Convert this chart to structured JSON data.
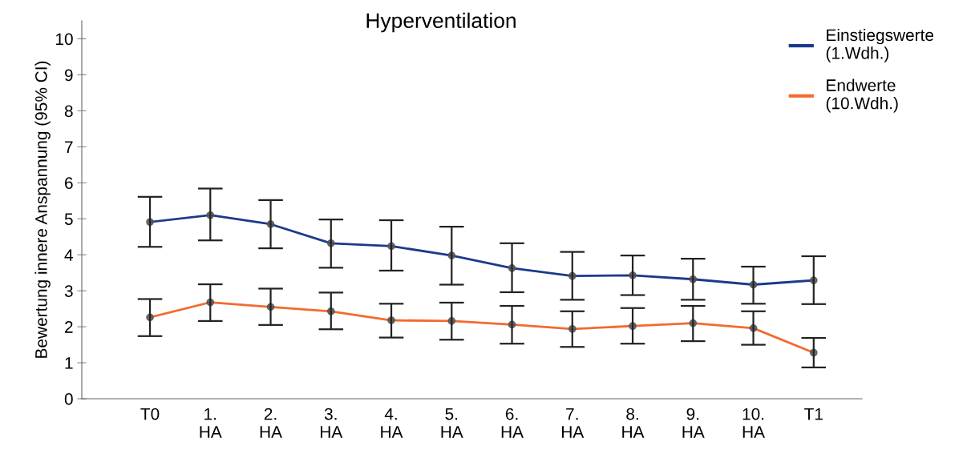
{
  "chart_data": {
    "type": "line",
    "title": "Hyperventilation",
    "ylabel": "Bewertung innere Anspannung (95% CI)",
    "categories": [
      "T0",
      "1.\nHA",
      "2.\nHA",
      "3.\nHA",
      "4.\nHA",
      "5.\nHA",
      "6.\nHA",
      "7.\nHA",
      "8.\nHA",
      "9.\nHA",
      "10.\nHA",
      "T1"
    ],
    "series": [
      {
        "name": "Einstiegswerte\n(1.Wdh.)",
        "color": "#1b3a8c",
        "values": [
          4.91,
          5.1,
          4.85,
          4.32,
          4.24,
          3.98,
          3.63,
          3.41,
          3.43,
          3.32,
          3.17,
          3.29
        ],
        "errors": [
          [
            4.22,
            5.61
          ],
          [
            4.4,
            5.84
          ],
          [
            4.18,
            5.52
          ],
          [
            3.64,
            4.98
          ],
          [
            3.56,
            4.96
          ],
          [
            3.17,
            4.78
          ],
          [
            2.96,
            4.32
          ],
          [
            2.75,
            4.08
          ],
          [
            2.88,
            3.98
          ],
          [
            2.75,
            3.89
          ],
          [
            2.64,
            3.67
          ],
          [
            2.63,
            3.96
          ]
        ]
      },
      {
        "name": "Endwerte\n(10.Wdh.)",
        "color": "#f26b2f",
        "values": [
          2.26,
          2.68,
          2.55,
          2.43,
          2.18,
          2.16,
          2.06,
          1.94,
          2.02,
          2.1,
          1.96,
          1.28
        ],
        "errors": [
          [
            1.74,
            2.77
          ],
          [
            2.16,
            3.18
          ],
          [
            2.05,
            3.06
          ],
          [
            1.93,
            2.95
          ],
          [
            1.7,
            2.64
          ],
          [
            1.64,
            2.67
          ],
          [
            1.53,
            2.58
          ],
          [
            1.44,
            2.43
          ],
          [
            1.53,
            2.52
          ],
          [
            1.6,
            2.58
          ],
          [
            1.5,
            2.43
          ],
          [
            0.87,
            1.69
          ]
        ]
      }
    ],
    "ylim": [
      0,
      10.5
    ],
    "yticks": [
      0,
      1,
      2,
      3,
      4,
      5,
      6,
      7,
      8,
      9,
      10
    ],
    "marker": "circle",
    "line_style": "solid",
    "grid": false,
    "legend": "top right"
  }
}
